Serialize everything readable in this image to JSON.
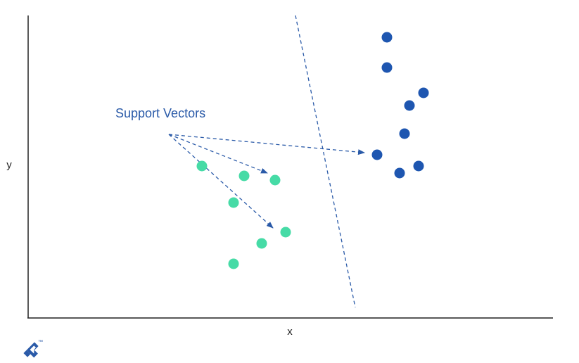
{
  "colors": {
    "class_a": "#1e56b0",
    "class_b": "#46dba6",
    "annotation": "#2a5aa8",
    "axis": "#222222"
  },
  "axes": {
    "x_label": "x",
    "y_label": "y"
  },
  "annotation": {
    "text": "Support Vectors"
  },
  "logo": {
    "icon": "toptal-logo-icon",
    "trademark": "™"
  },
  "chart_data": {
    "type": "scatter",
    "title": "",
    "xlabel": "x",
    "ylabel": "y",
    "grid": false,
    "series": [
      {
        "points": [
          [
            550,
            53
          ],
          [
            550,
            96
          ],
          [
            602,
            132
          ],
          [
            582,
            150
          ],
          [
            575,
            190
          ],
          [
            536,
            220
          ],
          [
            568,
            246
          ],
          [
            595,
            236
          ]
        ]
      },
      {
        "points": [
          [
            287,
            236
          ],
          [
            347,
            250
          ],
          [
            391,
            256
          ],
          [
            332,
            288
          ],
          [
            406,
            330
          ],
          [
            372,
            346
          ],
          [
            332,
            375
          ]
        ]
      }
    ],
    "decision_boundary": {
      "style": "dashed",
      "from": [
        420,
        22
      ],
      "to": [
        505,
        437
      ]
    },
    "support_vector_arrows": {
      "origin": [
        240,
        191
      ],
      "targets": [
        [
          518,
          217
        ],
        [
          380,
          246
        ],
        [
          388,
          324
        ]
      ]
    }
  }
}
